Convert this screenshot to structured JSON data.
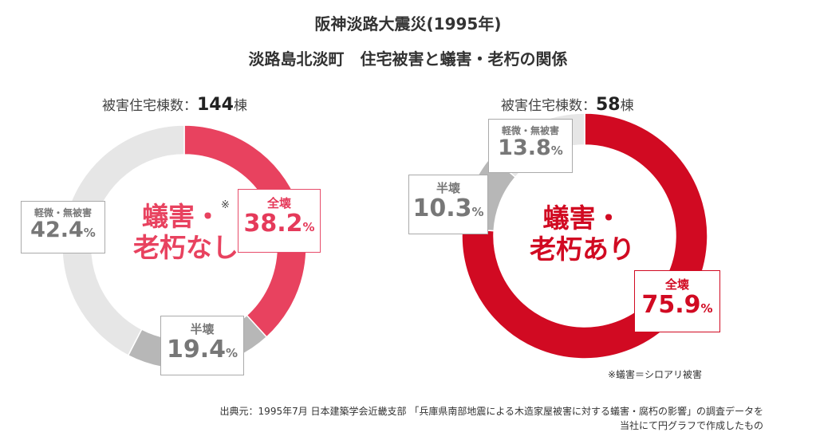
{
  "title_line1": "阪神淡路大震災(1995年)",
  "title_line2": "淡路島北淡町　住宅被害と蟻害・老朽の関係",
  "chart_data": [
    {
      "type": "pie",
      "count_label": "被害住宅棟数：",
      "count_value": "144",
      "count_unit": "棟",
      "center_label_line1": "蟻害・",
      "center_label_line2": "老朽なし",
      "center_mark": "※",
      "percent_unit": "%",
      "slices": [
        {
          "label": "全壊",
          "value": 38.2,
          "color": "#e8425f"
        },
        {
          "label": "半壊",
          "value": 19.4,
          "color": "#b7b7b7"
        },
        {
          "label": "軽微・無被害",
          "value": 42.4,
          "color": "#e6e6e6"
        }
      ]
    },
    {
      "type": "pie",
      "count_label": "被害住宅棟数：",
      "count_value": "58",
      "count_unit": "棟",
      "center_label_line1": "蟻害・",
      "center_label_line2": "老朽あり",
      "percent_unit": "%",
      "slices": [
        {
          "label": "全壊",
          "value": 75.9,
          "color": "#d10a22"
        },
        {
          "label": "半壊",
          "value": 10.3,
          "color": "#b7b7b7"
        },
        {
          "label": "軽微・無被害",
          "value": 13.8,
          "color": "#e6e6e6"
        }
      ]
    }
  ],
  "note": "※蟻害＝シロアリ被害",
  "source_line1": "出典元：1995年7月 日本建築学会近畿支部 「兵庫県南部地震による木造家屋被害に対する蟻害・腐朽の影響」の調査データを",
  "source_line2": "当社にて円グラフで作成したもの"
}
